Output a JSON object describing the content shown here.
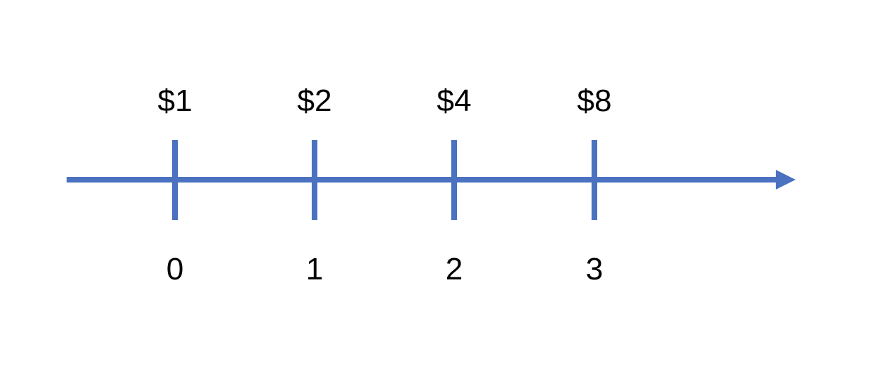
{
  "diagram": {
    "type": "timeline",
    "line_color": "#4A72C0",
    "text_color": "#000000",
    "points": [
      {
        "period": "0",
        "value": "$1"
      },
      {
        "period": "1",
        "value": "$2"
      },
      {
        "period": "2",
        "value": "$4"
      },
      {
        "period": "3",
        "value": "$8"
      }
    ]
  }
}
